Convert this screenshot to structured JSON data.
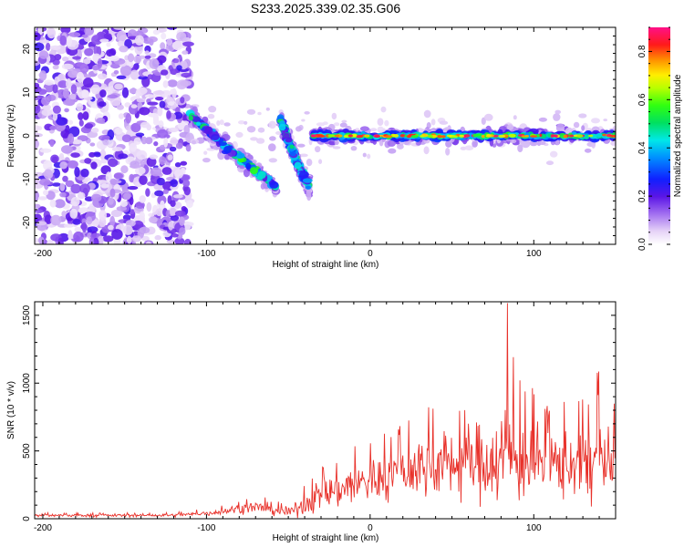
{
  "figure": {
    "title": "S233.2025.339.02.35.G06"
  },
  "chart_data": [
    {
      "type": "heatmap",
      "xlabel": "Height of straight line (km)",
      "ylabel": "Frequency (Hz)",
      "xlim": [
        -205,
        150
      ],
      "ylim": [
        -25,
        25
      ],
      "xticks": [
        -200,
        -100,
        0,
        100
      ],
      "yticks": [
        -20,
        -10,
        0,
        10,
        20
      ],
      "colorbar": {
        "label": "Normalized spectral amplitude",
        "range": [
          0.0,
          0.9
        ],
        "ticks": [
          0.0,
          0.2,
          0.4,
          0.6,
          0.8
        ],
        "colormap": "rainbow (white-violet-blue-cyan-green-yellow-red-magenta)"
      },
      "features": [
        {
          "name": "diffuse noise",
          "x_range": [
            -205,
            -110
          ],
          "freq_range": [
            -25,
            25
          ],
          "amplitude": 0.1
        },
        {
          "name": "descending track 1",
          "x": [
            -110,
            -90,
            -70,
            -57
          ],
          "freq": [
            5,
            -2,
            -8,
            -12
          ],
          "amplitude": 0.35
        },
        {
          "name": "descending track 2",
          "x": [
            -55,
            -45,
            -37
          ],
          "freq": [
            4,
            -6,
            -12
          ],
          "amplitude": 0.3
        },
        {
          "name": "steady carrier",
          "x_range": [
            -35,
            150
          ],
          "freq": 0,
          "amplitude": 0.6,
          "peak_amplitude": 0.9
        }
      ],
      "grid": false
    },
    {
      "type": "line",
      "xlabel": "Height of straight line (km)",
      "ylabel": "SNR (10 * v/v)",
      "xlim": [
        -205,
        150
      ],
      "ylim": [
        0,
        1600
      ],
      "xticks": [
        -200,
        -100,
        0,
        100
      ],
      "yticks": [
        0,
        500,
        1000,
        1500
      ],
      "series": [
        {
          "color": "#e8312a",
          "x": [
            -205,
            -180,
            -150,
            -120,
            -100,
            -90,
            -80,
            -70,
            -60,
            -50,
            -40,
            -30,
            -20,
            -10,
            0,
            10,
            20,
            30,
            40,
            50,
            60,
            70,
            80,
            84,
            90,
            100,
            110,
            120,
            130,
            140,
            150
          ],
          "mean": [
            25,
            25,
            25,
            25,
            40,
            55,
            75,
            85,
            70,
            40,
            110,
            180,
            220,
            250,
            280,
            310,
            350,
            380,
            400,
            410,
            420,
            430,
            450,
            450,
            440,
            420,
            400,
            410,
            420,
            430,
            380
          ],
          "upper": [
            45,
            45,
            45,
            48,
            75,
            105,
            140,
            170,
            155,
            90,
            260,
            420,
            520,
            560,
            600,
            650,
            720,
            820,
            860,
            900,
            940,
            1000,
            1100,
            1590,
            1050,
            960,
            900,
            920,
            980,
            1130,
            900
          ]
        }
      ],
      "grid": false
    }
  ]
}
